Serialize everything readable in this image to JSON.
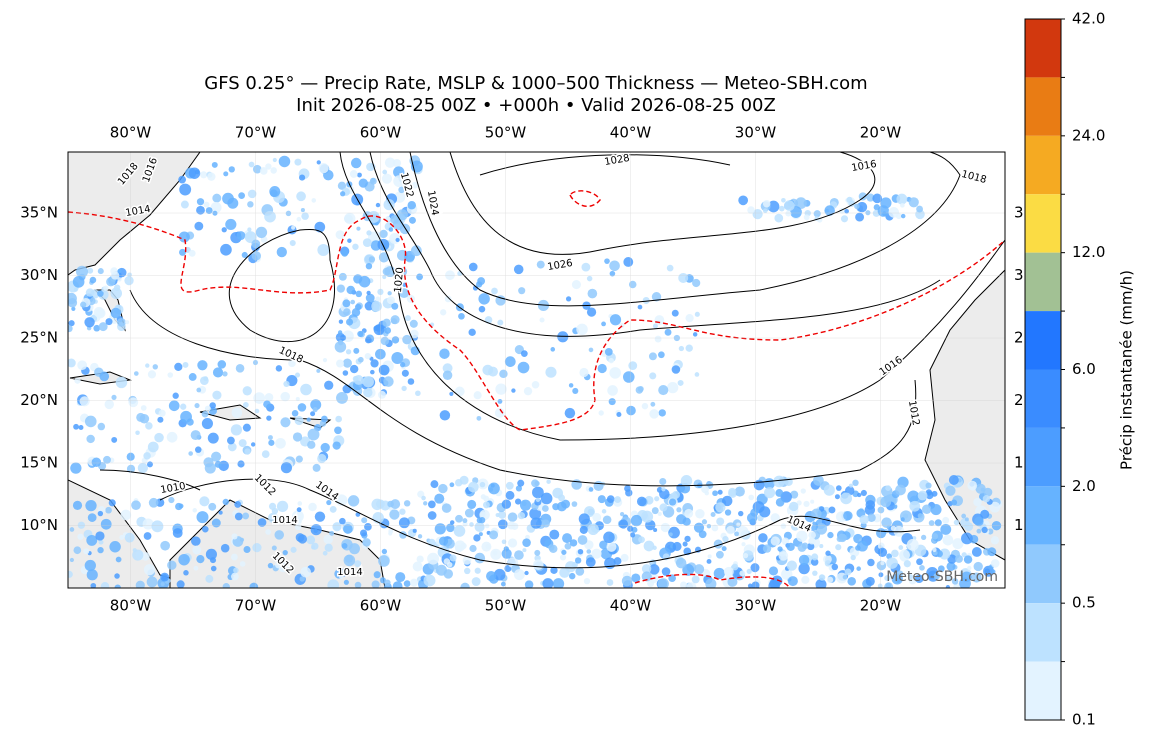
{
  "header": {
    "title": "GFS 0.25° — Precip Rate, MSLP & 1000–500 Thickness — Meteo-SBH.com",
    "subtitle": "Init 2026-08-25 00Z • +000h • Valid 2026-08-25 00Z"
  },
  "map": {
    "lon_labels": [
      "80°W",
      "70°W",
      "60°W",
      "50°W",
      "40°W",
      "30°W",
      "20°W"
    ],
    "lat_labels": [
      "35°N",
      "30°N",
      "25°N",
      "20°N",
      "15°N",
      "10°N"
    ],
    "contour_labels": [
      "1018",
      "1016",
      "1014",
      "1028",
      "1022",
      "1024",
      "1026",
      "1020",
      "1018",
      "1016",
      "1018",
      "1016",
      "1012",
      "1010",
      "1012",
      "1014",
      "1014",
      "1014",
      "1014",
      "1012"
    ],
    "clipped_labels": [
      "3",
      "3",
      "2",
      "2",
      "1",
      "1"
    ],
    "watermark": "Meteo-SBH.com"
  },
  "colorbar": {
    "label": "Précip instantanée (mm/h)",
    "tick_labels": [
      "42.0",
      "24.0",
      "12.0",
      "6.0",
      "2.0",
      "0.5",
      "0.1"
    ],
    "colors": [
      "#d2380e",
      "#e97c14",
      "#f5aa22",
      "#fbdc44",
      "#a2c194",
      "#2277ff",
      "#3a8cff",
      "#4c9dff",
      "#66b3ff",
      "#90c9fd",
      "#bde2ff",
      "#e3f3ff"
    ]
  }
}
